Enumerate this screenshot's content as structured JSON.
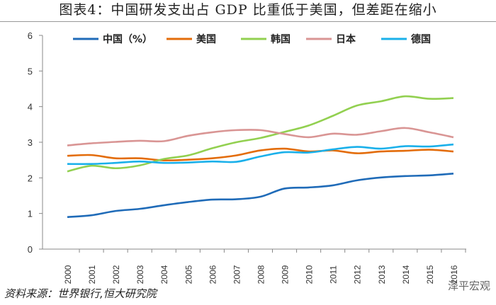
{
  "title": "图表4：中国研发支出占 GDP 比重低于美国，但差距在缩小",
  "source": "资料来源：世界银行,恒大研究院",
  "watermark": "泽平宏观",
  "chart_data": {
    "type": "line",
    "title": "图表4：中国研发支出占 GDP 比重低于美国，但差距在缩小",
    "xlabel": "",
    "ylabel": "",
    "ylim": [
      0,
      6
    ],
    "yticks": [
      "0",
      "1",
      "2",
      "3",
      "4",
      "5",
      "6"
    ],
    "categories": [
      "2000",
      "2001",
      "2002",
      "2003",
      "2004",
      "2005",
      "2006",
      "2007",
      "2008",
      "2009",
      "2010",
      "2011",
      "2012",
      "2013",
      "2014",
      "2015",
      "2016"
    ],
    "legend_position": "top",
    "series": [
      {
        "name": "中国（%）",
        "color": "#1f6bb8",
        "values": [
          0.9,
          0.95,
          1.07,
          1.13,
          1.23,
          1.32,
          1.39,
          1.4,
          1.47,
          1.7,
          1.73,
          1.79,
          1.93,
          2.01,
          2.05,
          2.07,
          2.12
        ]
      },
      {
        "name": "美国",
        "color": "#e36c0a",
        "values": [
          2.62,
          2.64,
          2.55,
          2.55,
          2.49,
          2.51,
          2.55,
          2.63,
          2.77,
          2.82,
          2.74,
          2.77,
          2.69,
          2.74,
          2.76,
          2.79,
          2.74
        ]
      },
      {
        "name": "韩国",
        "color": "#92d050",
        "values": [
          2.18,
          2.34,
          2.27,
          2.35,
          2.53,
          2.63,
          2.83,
          3.0,
          3.12,
          3.29,
          3.47,
          3.74,
          4.03,
          4.15,
          4.29,
          4.22,
          4.24
        ]
      },
      {
        "name": "日本",
        "color": "#d99594",
        "values": [
          2.91,
          2.97,
          3.01,
          3.04,
          3.03,
          3.18,
          3.28,
          3.34,
          3.34,
          3.23,
          3.14,
          3.24,
          3.21,
          3.31,
          3.4,
          3.28,
          3.14
        ]
      },
      {
        "name": "德国",
        "color": "#1ab0ea",
        "values": [
          2.39,
          2.39,
          2.42,
          2.46,
          2.42,
          2.43,
          2.46,
          2.45,
          2.6,
          2.72,
          2.71,
          2.8,
          2.87,
          2.82,
          2.89,
          2.88,
          2.94
        ]
      }
    ]
  }
}
